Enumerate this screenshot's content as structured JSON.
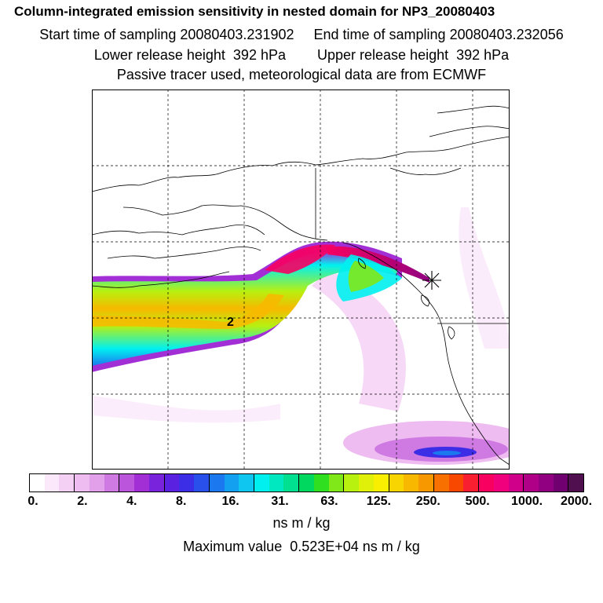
{
  "header": {
    "title": "Column-integrated emission sensitivity in nested domain for NP3_20080403",
    "sampling": "Start time of sampling 20080403.231902     End time of sampling 20080403.232056",
    "release": "Lower release height  392 hPa        Upper release height  392 hPa",
    "tracer": "Passive tracer used, meteorological data are from ECMWF"
  },
  "map": {
    "marker_label": "2",
    "release_marker": "asterisk-icon",
    "gridlines": true
  },
  "colorbar": {
    "colors": [
      "#ffffff",
      "#fbe8fb",
      "#f5d0f5",
      "#eebcf0",
      "#e3a0ea",
      "#cf7ae2",
      "#bb55db",
      "#a22fd6",
      "#7a23dc",
      "#5a22e0",
      "#3b2ee6",
      "#2a50ec",
      "#1c78ee",
      "#14a0f0",
      "#0fc6f0",
      "#00f0f0",
      "#00e8c0",
      "#00e090",
      "#00d860",
      "#30e020",
      "#80e818",
      "#b8f010",
      "#e0f008",
      "#f8f000",
      "#f8d400",
      "#f8b800",
      "#f89800",
      "#f87000",
      "#f84800",
      "#f82030",
      "#f80060",
      "#f0007c",
      "#d0008a",
      "#b00088",
      "#900080",
      "#700070",
      "#501050"
    ],
    "tick_labels": [
      "0.",
      "2.",
      "4.",
      "8.",
      "16.",
      "31.",
      "63.",
      "125.",
      "250.",
      "500.",
      "1000.",
      "2000."
    ],
    "unit": "ns m / kg"
  },
  "max_value": "Maximum value  0.523E+04 ns m / kg"
}
